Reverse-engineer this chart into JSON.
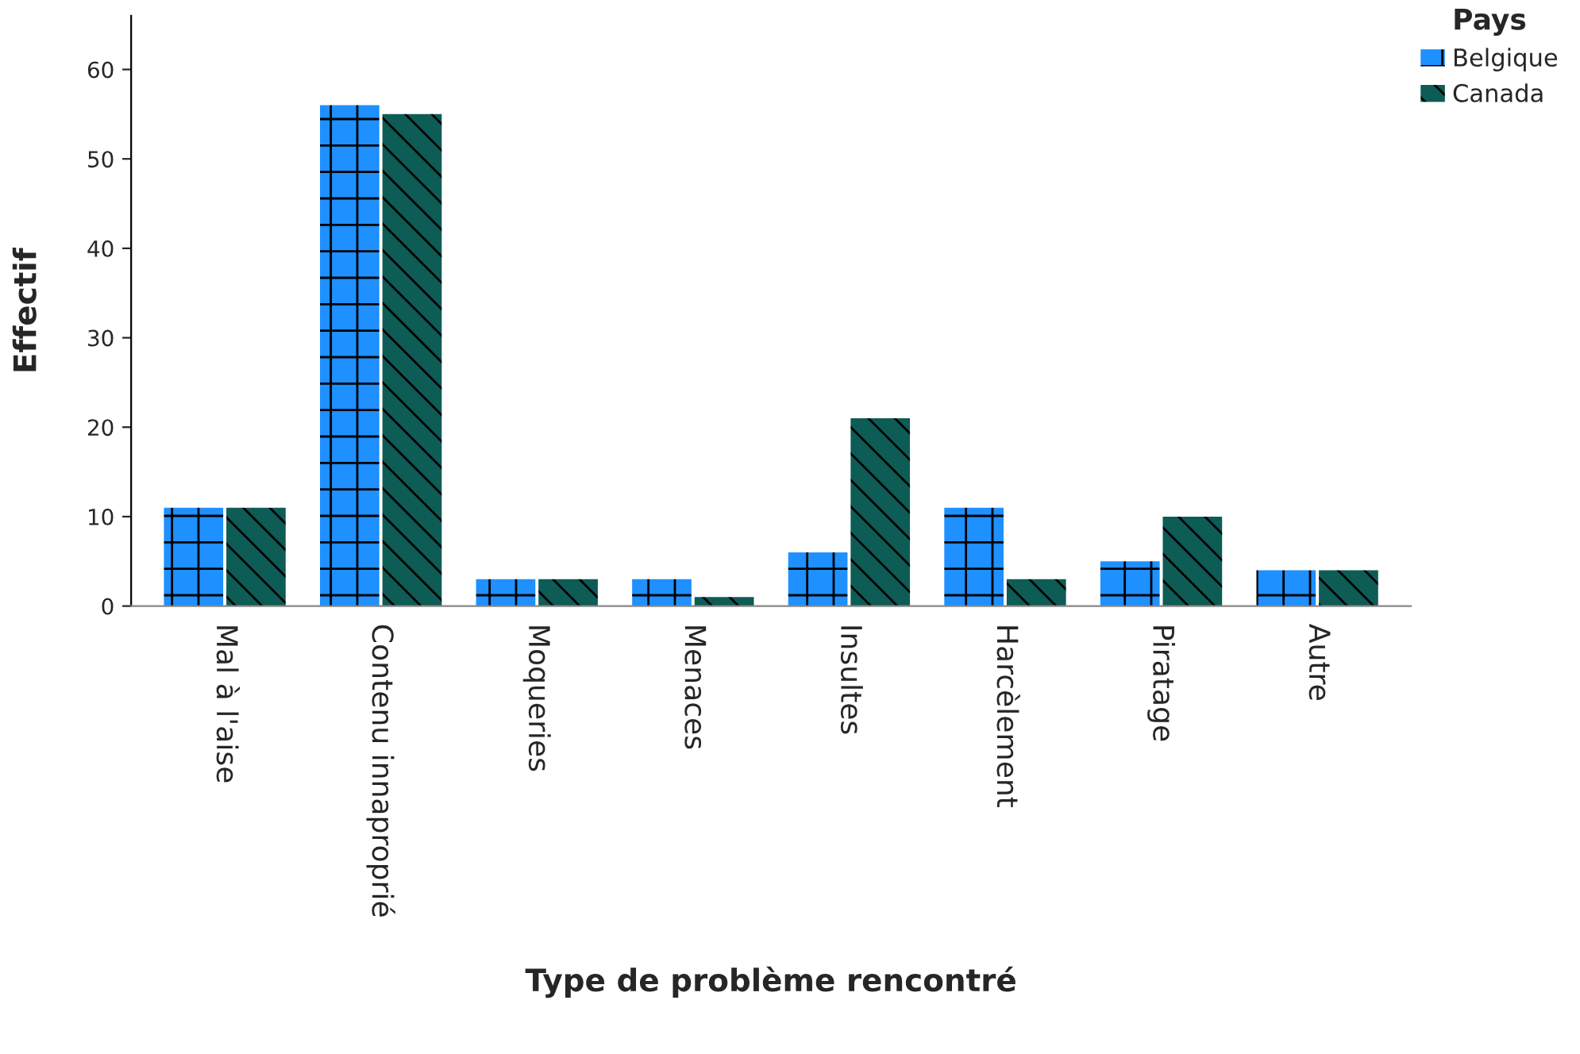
{
  "chart_data": {
    "type": "bar",
    "xlabel": "Type de problème rencontré",
    "ylabel": "Effectif",
    "legend_title": "Pays",
    "legend": "top right",
    "categories": [
      "Mal à l'aise",
      "Contenu innaproprié",
      "Moqueries",
      "Menaces",
      "Insultes",
      "Harcèlement",
      "Piratage",
      "Autre"
    ],
    "series": [
      {
        "name": "Belgique",
        "color": "#1e90ff",
        "values": [
          11,
          56,
          3,
          3,
          6,
          11,
          5,
          4
        ]
      },
      {
        "name": "Canada",
        "color": "#0d5c55",
        "values": [
          11,
          55,
          3,
          1,
          21,
          3,
          10,
          4
        ]
      }
    ],
    "ylim": [
      0,
      66
    ],
    "yticks": [
      0,
      10,
      20,
      30,
      40,
      50,
      60
    ],
    "grid": false
  }
}
